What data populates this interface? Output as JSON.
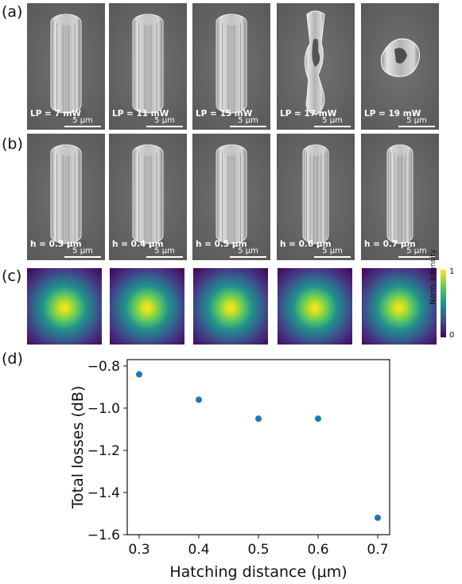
{
  "labels": {
    "a": "(a)",
    "b": "(b)",
    "c": "(c)",
    "d": "(d)"
  },
  "row_a": [
    {
      "label": "LP = 7 mW",
      "scale": "5 μm",
      "highlight": false,
      "shape": "pillar"
    },
    {
      "label": "LP = 11 mW",
      "scale": "5 μm",
      "highlight": false,
      "shape": "pillar"
    },
    {
      "label": "LP = 15 mW",
      "scale": "5 μm",
      "highlight": true,
      "shape": "pillar"
    },
    {
      "label": "LP = 17 mW",
      "scale": "5 μm",
      "highlight": false,
      "shape": "damaged"
    },
    {
      "label": "LP = 19 mW",
      "scale": "5 μm",
      "highlight": false,
      "shape": "debris"
    }
  ],
  "row_b": [
    {
      "label": "h = 0.3 μm",
      "scale": "5 μm",
      "highlight": false,
      "shape": "pillar"
    },
    {
      "label": "h = 0.4 μm",
      "scale": "5 μm",
      "highlight": true,
      "shape": "pillar"
    },
    {
      "label": "h = 0.5 μm",
      "scale": "5 μm",
      "highlight": false,
      "shape": "pillar"
    },
    {
      "label": "h = 0.6 μm",
      "scale": "5 μm",
      "highlight": false,
      "shape": "ribbed"
    },
    {
      "label": "h = 0.7 μm",
      "scale": "5 μm",
      "highlight": false,
      "shape": "ribbed"
    }
  ],
  "colorbar": {
    "title": "Norm. Intensity",
    "max": "1",
    "min": "0"
  },
  "chart_data": {
    "type": "scatter",
    "xlabel": "Hatching distance (μm)",
    "ylabel": "Total losses (dB)",
    "x": [
      0.3,
      0.4,
      0.5,
      0.6,
      0.7
    ],
    "y": [
      -0.84,
      -0.96,
      -1.05,
      -1.05,
      -1.52
    ],
    "xlim": [
      0.28,
      0.72
    ],
    "ylim": [
      -1.6,
      -0.77
    ],
    "xticks": [
      "0.3",
      "0.4",
      "0.5",
      "0.6",
      "0.7"
    ],
    "yticks": [
      "-0.8",
      "-1.0",
      "-1.2",
      "-1.4",
      "-1.6"
    ],
    "marker_color": "#1f77b4"
  }
}
